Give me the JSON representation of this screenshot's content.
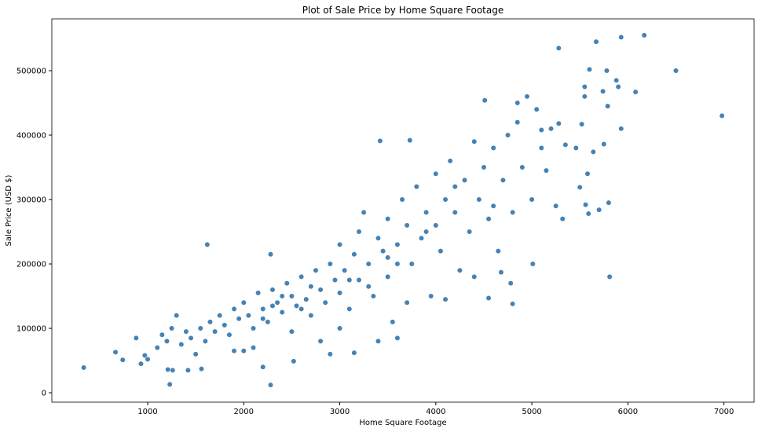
{
  "chart_data": {
    "type": "scatter",
    "title": "Plot of Sale Price by Home Square Footage",
    "x_label": "Home Square Footage",
    "y_label": "Sale Price (USD $)",
    "color": "#4682b4",
    "xlim": [
      2,
      7314
    ],
    "ylim": [
      -14600,
      580500
    ],
    "xticks": [
      1000,
      2000,
      3000,
      4000,
      5000,
      6000,
      7000
    ],
    "yticks": [
      0,
      100000,
      200000,
      300000,
      400000,
      500000
    ],
    "x": [
      334,
      665,
      740,
      880,
      930,
      970,
      1000,
      5280,
      5670,
      5930,
      6170,
      6500,
      6980,
      5600,
      5780,
      5880,
      5900,
      5550,
      5550,
      5790,
      5740,
      6080,
      5930,
      5520,
      5280,
      5100,
      5640,
      5750,
      5460,
      5350,
      5500,
      5580,
      5800,
      5560,
      5700,
      5590,
      5320,
      5810,
      5010,
      4800,
      4780,
      4680,
      4550,
      4510,
      3420,
      3730,
      1620,
      2280,
      2280,
      1230,
      2200,
      2520,
      1560,
      1420,
      1260,
      1210,
      2900,
      3150,
      1100,
      1150,
      1200,
      1250,
      1300,
      1350,
      1400,
      1450,
      1500,
      1550,
      1600,
      1650,
      1700,
      1750,
      1800,
      1850,
      1900,
      1950,
      2000,
      2000,
      2050,
      2100,
      2150,
      2200,
      2250,
      2300,
      2350,
      2400,
      2450,
      2500,
      2550,
      2600,
      2650,
      2700,
      2750,
      2800,
      2850,
      2900,
      2950,
      3000,
      3000,
      3050,
      3100,
      3150,
      3200,
      3200,
      3250,
      3300,
      3350,
      3400,
      3450,
      3500,
      3500,
      3550,
      3600,
      3650,
      3700,
      3750,
      3800,
      3850,
      3900,
      3950,
      4000,
      4000,
      4050,
      4100,
      4150,
      4200,
      4250,
      4300,
      4350,
      4400,
      4450,
      4500,
      4550,
      4600,
      4650,
      4700,
      4750,
      4800,
      4850,
      4850,
      4900,
      4950,
      5000,
      5050,
      5100,
      5150,
      5200,
      5250,
      3600,
      3400,
      2800,
      2100,
      1900,
      2500,
      3000,
      3700,
      4100,
      4400,
      2600,
      2700,
      2400,
      2300,
      2200,
      3100,
      3300,
      3500,
      3600,
      3900,
      4200,
      4600
    ],
    "values": [
      39000,
      63000,
      51000,
      85000,
      45000,
      58000,
      52000,
      535000,
      545000,
      552000,
      555000,
      500000,
      430000,
      502000,
      500000,
      485000,
      475000,
      475000,
      460000,
      445000,
      468000,
      467000,
      410000,
      417000,
      418000,
      408000,
      374000,
      386000,
      380000,
      385000,
      319000,
      340000,
      295000,
      292000,
      284000,
      278000,
      270000,
      180000,
      200000,
      138000,
      170000,
      187000,
      147000,
      454000,
      391000,
      392000,
      230000,
      215000,
      12000,
      13000,
      40000,
      49000,
      37000,
      35000,
      35000,
      36000,
      60000,
      62000,
      70000,
      90000,
      80000,
      100000,
      120000,
      75000,
      95000,
      85000,
      60000,
      100000,
      80000,
      110000,
      95000,
      120000,
      105000,
      90000,
      130000,
      115000,
      65000,
      140000,
      120000,
      100000,
      155000,
      130000,
      110000,
      160000,
      140000,
      125000,
      170000,
      150000,
      135000,
      180000,
      145000,
      120000,
      190000,
      160000,
      140000,
      200000,
      175000,
      155000,
      230000,
      190000,
      130000,
      215000,
      250000,
      175000,
      280000,
      200000,
      150000,
      240000,
      220000,
      270000,
      180000,
      110000,
      230000,
      300000,
      260000,
      200000,
      320000,
      240000,
      280000,
      150000,
      340000,
      260000,
      220000,
      300000,
      360000,
      280000,
      190000,
      330000,
      250000,
      390000,
      300000,
      350000,
      270000,
      380000,
      220000,
      330000,
      400000,
      280000,
      420000,
      450000,
      350000,
      460000,
      300000,
      440000,
      380000,
      345000,
      410000,
      290000,
      85000,
      80000,
      80000,
      70000,
      65000,
      95000,
      100000,
      140000,
      145000,
      180000,
      130000,
      165000,
      150000,
      135000,
      115000,
      175000,
      165000,
      210000,
      200000,
      250000,
      320000,
      290000
    ]
  }
}
